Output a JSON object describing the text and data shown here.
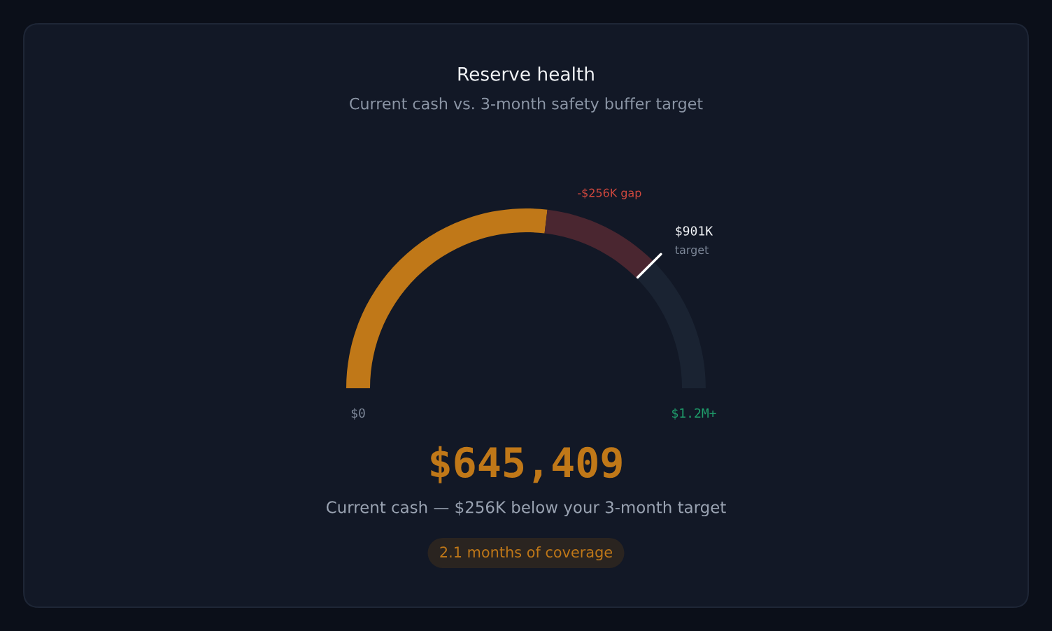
{
  "chart_data": {
    "type": "donut",
    "title": "Reserve health",
    "subtitle": "Current cash vs. 3-month safety buffer target",
    "categories": [
      null,
      "-$256K gap",
      null
    ],
    "values": [
      53.8,
      21.3,
      24.9
    ],
    "colors": [
      "#c07818",
      "#4a2630",
      "#1a2332"
    ],
    "annotations": [
      "$0",
      "$1.2M+",
      "$901K",
      "target",
      "$645,409",
      "Current cash — $256K below your 3-month target",
      "2.1 months of coverage"
    ]
  }
}
